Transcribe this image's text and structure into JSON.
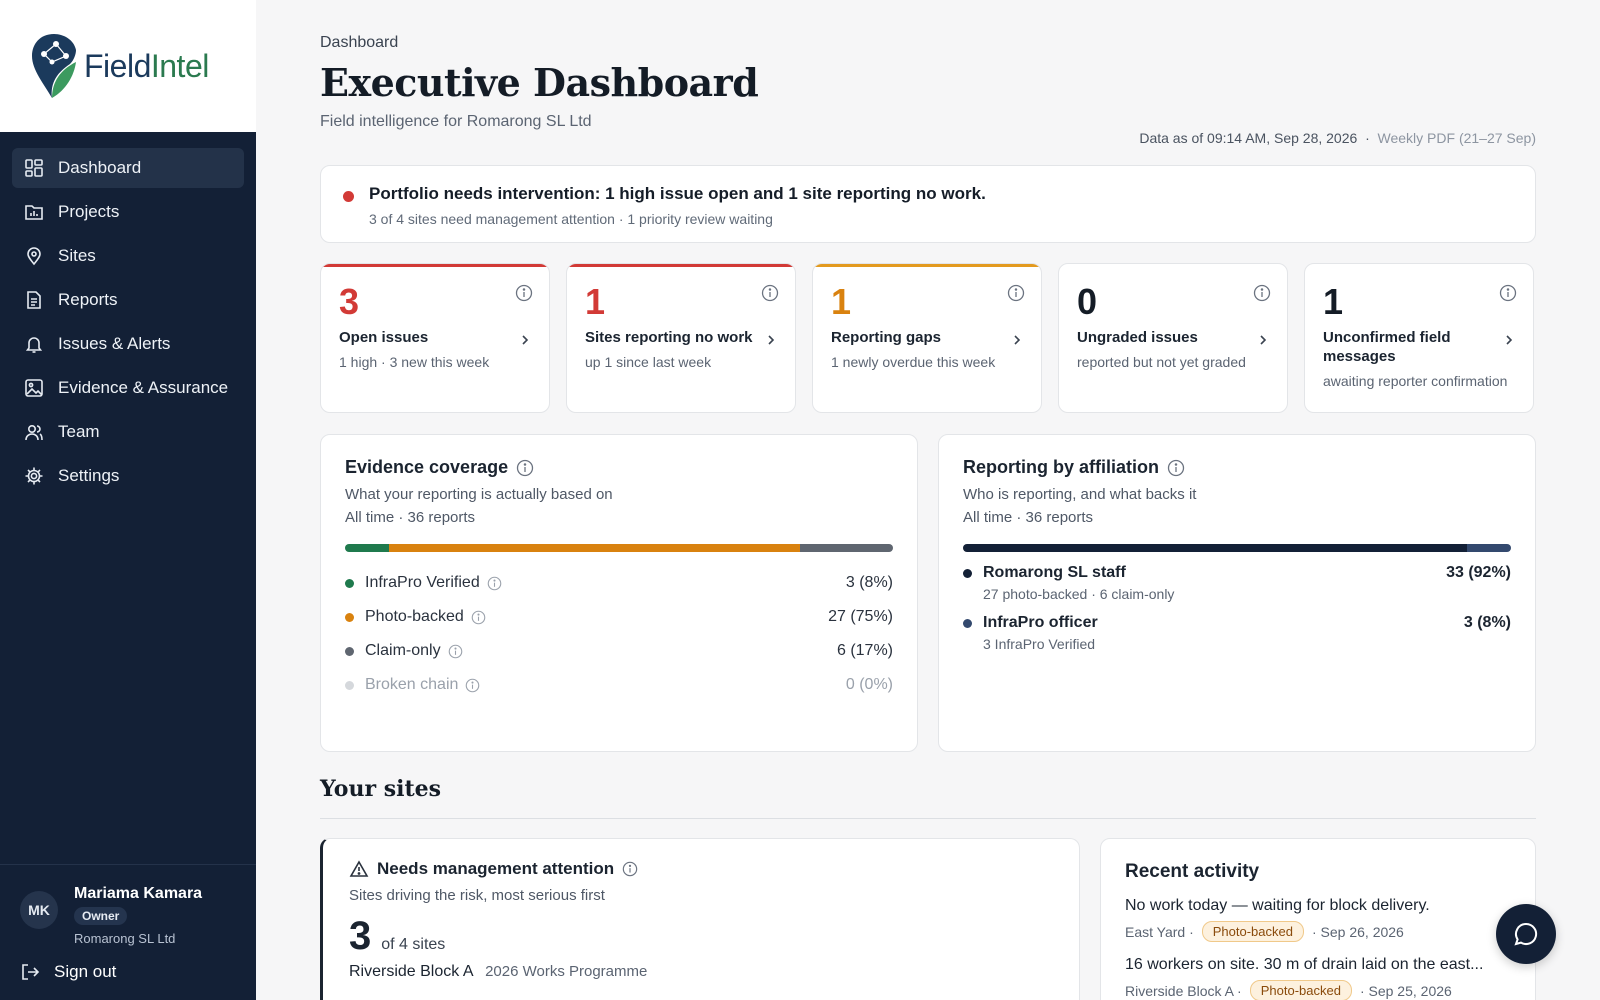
{
  "brand": {
    "name_part1": "Field",
    "name_part2": "Intel"
  },
  "nav": {
    "items": [
      {
        "label": "Dashboard",
        "icon": "grid-icon",
        "active": true
      },
      {
        "label": "Projects",
        "icon": "chart-folder-icon"
      },
      {
        "label": "Sites",
        "icon": "map-pin-icon"
      },
      {
        "label": "Reports",
        "icon": "document-icon"
      },
      {
        "label": "Issues & Alerts",
        "icon": "bell-icon"
      },
      {
        "label": "Evidence & Assurance",
        "icon": "image-icon"
      },
      {
        "label": "Team",
        "icon": "users-icon"
      },
      {
        "label": "Settings",
        "icon": "gear-icon"
      }
    ]
  },
  "user": {
    "initials": "MK",
    "name": "Mariama Kamara",
    "role": "Owner",
    "org": "Romarong SL Ltd",
    "signout": "Sign out"
  },
  "header": {
    "breadcrumb": "Dashboard",
    "title": "Executive Dashboard",
    "subtitle": "Field intelligence for Romarong SL Ltd",
    "data_as_of": "Data as of 09:14 AM, Sep 28, 2026",
    "separator": "·",
    "weekly_pdf": "Weekly PDF (21–27 Sep)"
  },
  "alert": {
    "headline": "Portfolio needs intervention: 1 high issue open and 1 site reporting no work.",
    "detail": "3 of 4 sites need management attention · 1 priority review waiting"
  },
  "kpis": [
    {
      "value": "3",
      "label": "Open issues",
      "sub": "1 high · 3 new this week",
      "color": "#d23a36",
      "bar": "#d23a36"
    },
    {
      "value": "1",
      "label": "Sites reporting no work",
      "sub": "up 1 since last week",
      "color": "#d23a36",
      "bar": "#d23a36"
    },
    {
      "value": "1",
      "label": "Reporting gaps",
      "sub": "1 newly overdue this week",
      "color": "#d9820f",
      "bar": "#e39a1f"
    },
    {
      "value": "0",
      "label": "Ungraded issues",
      "sub": "reported but not yet graded",
      "color": "#141c26",
      "bar": ""
    },
    {
      "value": "1",
      "label": "Unconfirmed field messages",
      "sub": "awaiting reporter confirmation",
      "color": "#141c26",
      "bar": ""
    }
  ],
  "evidence": {
    "title": "Evidence coverage",
    "desc": "What your reporting is actually based on",
    "meta": "All time · 36 reports",
    "rows": [
      {
        "label": "InfraPro Verified",
        "value": "3 (8%)",
        "pct": 8,
        "color": "#1f7a4d"
      },
      {
        "label": "Photo-backed",
        "value": "27 (75%)",
        "pct": 75,
        "color": "#d9820f"
      },
      {
        "label": "Claim-only",
        "value": "6 (17%)",
        "pct": 17,
        "color": "#5f6670"
      },
      {
        "label": "Broken chain",
        "value": "0 (0%)",
        "pct": 0,
        "color": "#d5d8dc"
      }
    ]
  },
  "affiliation": {
    "title": "Reporting by affiliation",
    "desc": "Who is reporting, and what backs it",
    "meta": "All time · 36 reports",
    "rows": [
      {
        "name": "Romarong SL staff",
        "detail": "27 photo-backed · 6 claim-only",
        "value": "33 (92%)",
        "pct": 92,
        "color": "#132036"
      },
      {
        "name": "InfraPro officer",
        "detail": "3 InfraPro Verified",
        "value": "3 (8%)",
        "pct": 8,
        "color": "#33496e"
      }
    ]
  },
  "sites": {
    "heading": "Your sites",
    "attention": {
      "title": "Needs management attention",
      "desc": "Sites driving the risk, most serious first",
      "count": "3",
      "of": "of 4 sites",
      "site_name": "Riverside Block A",
      "site_programme": "2026 Works Programme"
    }
  },
  "recent": {
    "title": "Recent activity",
    "items": [
      {
        "text": "No work today — waiting for block delivery.",
        "site": "East Yard ·",
        "tag": "Photo-backed",
        "date": "· Sep 26, 2026"
      },
      {
        "text": "16 workers on site. 30 m of drain laid on the east...",
        "site": "Riverside Block A ·",
        "tag": "Photo-backed",
        "date": "· Sep 25, 2026"
      }
    ]
  }
}
